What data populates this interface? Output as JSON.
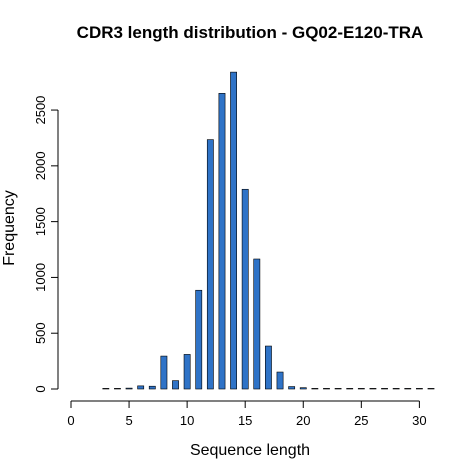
{
  "chart_data": {
    "type": "bar",
    "title": "CDR3 length distribution - GQ02-E120-TRA",
    "xlabel": "Sequence length",
    "ylabel": "Frequency",
    "x_ticks": [
      0,
      5,
      10,
      15,
      20,
      25,
      30
    ],
    "y_ticks": [
      0,
      500,
      1000,
      1500,
      2000,
      2500
    ],
    "xlim": [
      0,
      31
    ],
    "ylim": [
      0,
      2850
    ],
    "grid": false,
    "bar_color": "#2f73c7",
    "categories": [
      3,
      4,
      5,
      6,
      7,
      8,
      9,
      10,
      11,
      12,
      13,
      14,
      15,
      16,
      17,
      18,
      19,
      20,
      21,
      22,
      23,
      24,
      25,
      26,
      27,
      28,
      29,
      30,
      31
    ],
    "values": [
      1,
      3,
      8,
      28,
      25,
      295,
      75,
      310,
      885,
      2235,
      2650,
      2840,
      1790,
      1165,
      385,
      152,
      22,
      12,
      2,
      1,
      1,
      1,
      1,
      1,
      1,
      2,
      1,
      1,
      1
    ]
  }
}
